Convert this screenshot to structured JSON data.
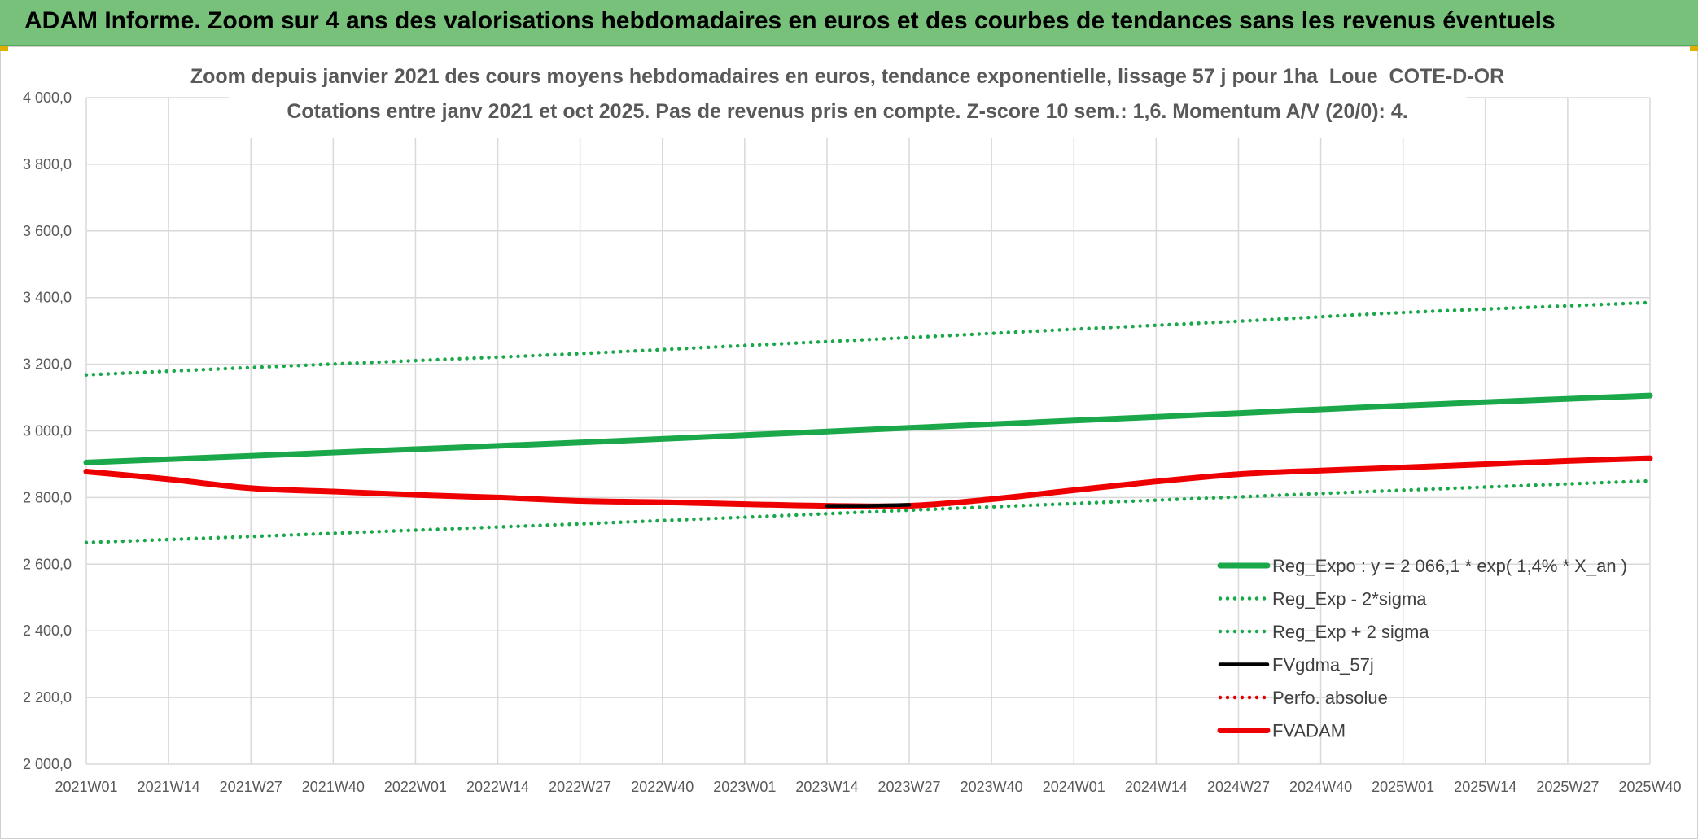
{
  "banner": {
    "title": "ADAM Informe. Zoom sur 4 ans des valorisations hebdomadaires en euros et des courbes de tendances sans les revenus éventuels"
  },
  "colors": {
    "banner_bg": "#77c17a",
    "trend": "#1aa84a",
    "band": "#1aa84a",
    "fvgdma": "#000000",
    "perfo": "#e00000",
    "fvadam": "#ee0000",
    "grid": "#d9d9d9"
  },
  "chart_data": {
    "type": "line",
    "title_line1": "Zoom depuis janvier 2021 des cours moyens hebdomadaires en euros, tendance exponentielle, lissage 57 j pour 1ha_Loue_COTE-D-OR",
    "title_line2": "Cotations entre janv 2021 et oct 2025. Pas de revenus pris en compte. Z-score 10 sem.: 1,6. Momentum A/V (20/0): 4.",
    "x_ticks": [
      "2021W01",
      "2021W14",
      "2021W27",
      "2021W40",
      "2022W01",
      "2022W14",
      "2022W27",
      "2022W40",
      "2023W01",
      "2023W14",
      "2023W27",
      "2023W40",
      "2024W01",
      "2024W14",
      "2024W27",
      "2024W40",
      "2025W01",
      "2025W14",
      "2025W27",
      "2025W40"
    ],
    "y_ticks": [
      "2 000,0",
      "2 200,0",
      "2 400,0",
      "2 600,0",
      "2 800,0",
      "3 000,0",
      "3 200,0",
      "3 400,0",
      "3 600,0",
      "3 800,0",
      "4 000,0"
    ],
    "ylim": [
      2000,
      4000
    ],
    "grid": true,
    "legend_position": "bottom-right",
    "series": [
      {
        "name": "Reg_Expo : y = 2 066,1 * exp( 1,4% *  X_an )",
        "style": "solid-thick",
        "color": "#1aa84a",
        "x": [
          "2021W01",
          "2021W27",
          "2022W01",
          "2022W27",
          "2023W01",
          "2023W27",
          "2024W01",
          "2024W27",
          "2025W01",
          "2025W40"
        ],
        "values": [
          2905,
          2925,
          2945,
          2965,
          2987,
          3009,
          3031,
          3053,
          3076,
          3106
        ]
      },
      {
        "name": "Reg_Exp - 2*sigma",
        "style": "dotted",
        "color": "#1aa84a",
        "x": [
          "2021W01",
          "2021W27",
          "2022W01",
          "2022W27",
          "2023W01",
          "2023W27",
          "2024W01",
          "2024W27",
          "2025W01",
          "2025W40"
        ],
        "values": [
          2665,
          2683,
          2702,
          2721,
          2741,
          2762,
          2782,
          2802,
          2822,
          2850
        ]
      },
      {
        "name": "Reg_Exp + 2 sigma",
        "style": "dotted",
        "color": "#1aa84a",
        "x": [
          "2021W01",
          "2021W27",
          "2022W01",
          "2022W27",
          "2023W01",
          "2023W27",
          "2024W01",
          "2024W27",
          "2025W01",
          "2025W40"
        ],
        "values": [
          3168,
          3190,
          3211,
          3232,
          3256,
          3280,
          3305,
          3329,
          3355,
          3385
        ]
      },
      {
        "name": "FVgdma_57j",
        "style": "solid",
        "color": "#000000",
        "x": [
          "2023W14",
          "2023W20",
          "2023W27"
        ],
        "values": [
          2775,
          2775,
          2778
        ]
      },
      {
        "name": "Perfo. absolue",
        "style": "dotted",
        "color": "#e00000",
        "x": [],
        "values": []
      },
      {
        "name": "FVADAM",
        "style": "solid-thick",
        "color": "#ee0000",
        "x": [
          "2021W01",
          "2021W14",
          "2021W27",
          "2021W40",
          "2022W01",
          "2022W14",
          "2022W27",
          "2022W40",
          "2023W01",
          "2023W14",
          "2023W27",
          "2023W40",
          "2024W01",
          "2024W14",
          "2024W27",
          "2024W40",
          "2025W01",
          "2025W14",
          "2025W27",
          "2025W40"
        ],
        "values": [
          2878,
          2855,
          2828,
          2818,
          2808,
          2800,
          2790,
          2786,
          2780,
          2775,
          2775,
          2795,
          2822,
          2848,
          2870,
          2881,
          2890,
          2900,
          2910,
          2918
        ]
      }
    ]
  }
}
